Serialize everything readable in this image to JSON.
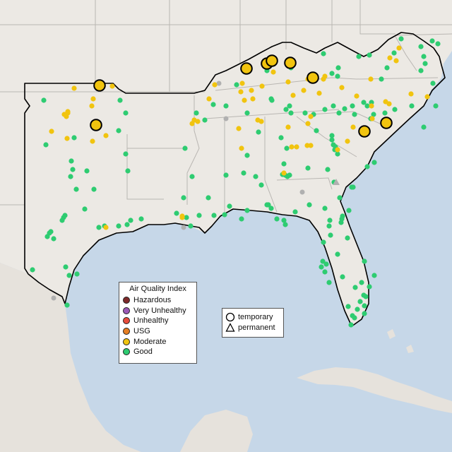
{
  "legend": {
    "title": "Air Quality Index",
    "categories": [
      {
        "label": "Hazardous",
        "color": "#7e2a2a"
      },
      {
        "label": "Very Unhealthy",
        "color": "#9b59b6"
      },
      {
        "label": "Unhealthy",
        "color": "#e74c3c"
      },
      {
        "label": "USG",
        "color": "#e67e22"
      },
      {
        "label": "Moderate",
        "color": "#f1c40f"
      },
      {
        "label": "Good",
        "color": "#2ecc71"
      }
    ]
  },
  "monitor_legend": {
    "temporary_label": "temporary",
    "permanent_label": "permanent"
  },
  "colors": {
    "ocean": "#c6d7e8",
    "land": "#ece9e4",
    "region_border": "#000000",
    "state_border": "#b9b6b2",
    "no_data": "#b0b0b0"
  }
}
